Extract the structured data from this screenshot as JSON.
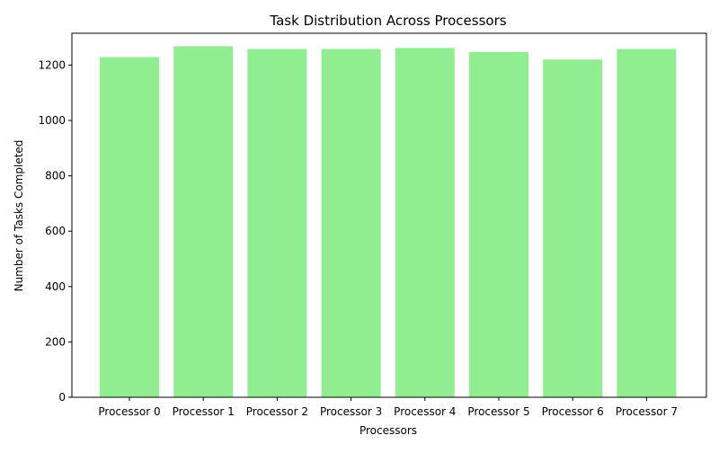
{
  "chart_data": {
    "type": "bar",
    "title": "Task Distribution Across Processors",
    "xlabel": "Processors",
    "ylabel": "Number of Tasks Completed",
    "categories": [
      "Processor 0",
      "Processor 1",
      "Processor 2",
      "Processor 3",
      "Processor 4",
      "Processor 5",
      "Processor 6",
      "Processor 7"
    ],
    "values": [
      1229,
      1268,
      1258,
      1258,
      1262,
      1247,
      1220,
      1258
    ],
    "ylim": [
      0,
      1315
    ],
    "yticks": [
      0,
      200,
      400,
      600,
      800,
      1000,
      1200
    ],
    "bar_color": "#90ee90",
    "grid": false,
    "legend": "none"
  }
}
